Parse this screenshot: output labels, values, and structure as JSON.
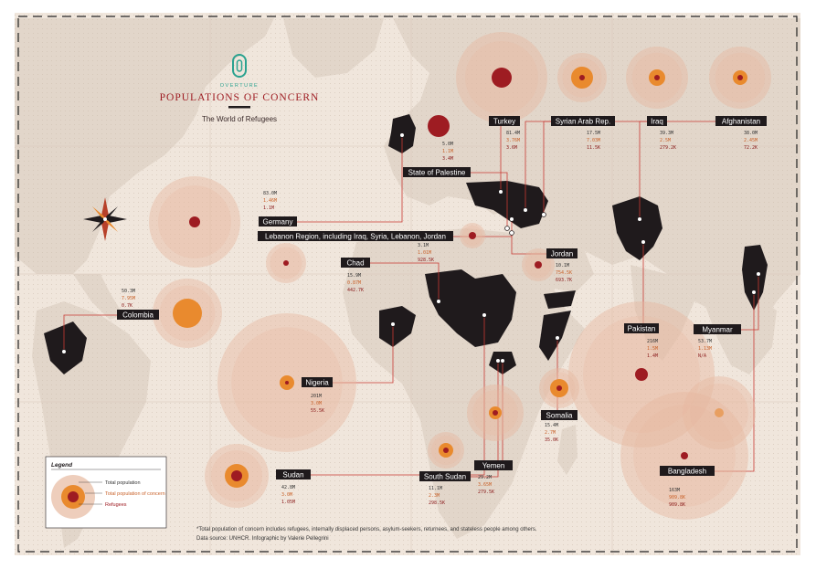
{
  "brand": "OVERTURE",
  "title": "POPULATIONS OF CONCERN",
  "subtitle": "The World of Refugees",
  "footnote_1": "*Total population of concern includes refugees, internally displaced persons, asylum-seekers, returnees, and stateless people among others.",
  "footnote_2": "Data source: UNHCR. Infographic by Valerie Pellegrini",
  "legend": {
    "title": "Legend",
    "items": [
      "Total population",
      "Total population of concern",
      "Refugees"
    ]
  },
  "colors": {
    "ocean": "#f0e6dc",
    "land": "#e2d6ca",
    "country_dark": "#1f1a1c",
    "outer_ring": "#e7b9a0",
    "concern": "#e98a2e",
    "refugees": "#9e1c22",
    "line": "#c73a33"
  },
  "countries": [
    {
      "name": "Turkey",
      "n1": "81.4M",
      "n2": "3.76M",
      "n3": "3.6M"
    },
    {
      "name": "Syrian Arab Rep.",
      "n1": "17.5M",
      "n2": "7.03M",
      "n3": "11.5K"
    },
    {
      "name": "Iraq",
      "n1": "39.3M",
      "n2": "2.5M",
      "n3": "279.2K"
    },
    {
      "name": "Afghanistan",
      "n1": "38.0M",
      "n2": "2.45M",
      "n3": "72.2K"
    },
    {
      "name": "State of Palestine",
      "n1": "5.0M",
      "n2": "1.1M",
      "n3": "3.4M"
    },
    {
      "name": "Germany",
      "n1": "83.0M",
      "n2": "1.46M",
      "n3": "1.1M"
    },
    {
      "name": "Lebanon Region, including Iraq, Syria, Lebanon, Jordan",
      "n1": "3.1M",
      "n2": "1.01M",
      "n3": "928.5K"
    },
    {
      "name": "Jordan",
      "n1": "10.1M",
      "n2": "754.5K",
      "n3": "693.7K"
    },
    {
      "name": "Chad",
      "n1": "15.9M",
      "n2": "0.87M",
      "n3": "442.7K"
    },
    {
      "name": "Colombia",
      "n1": "50.3M",
      "n2": "7.95M",
      "n3": "0.7K"
    },
    {
      "name": "Nigeria",
      "n1": "201M",
      "n2": "3.0M",
      "n3": "55.5K"
    },
    {
      "name": "Pakistan",
      "n1": "216M",
      "n2": "1.5M",
      "n3": "1.4M"
    },
    {
      "name": "Myanmar",
      "n1": "53.7M",
      "n2": "1.13M",
      "n3": "N/A"
    },
    {
      "name": "Somalia",
      "n1": "15.4M",
      "n2": "2.7M",
      "n3": "35.0K"
    },
    {
      "name": "Yemen",
      "n1": "29.2M",
      "n2": "3.65M",
      "n3": "279.5K"
    },
    {
      "name": "South Sudan",
      "n1": "11.1M",
      "n2": "2.3M",
      "n3": "298.5K"
    },
    {
      "name": "Sudan",
      "n1": "42.8M",
      "n2": "3.0M",
      "n3": "1.05M"
    },
    {
      "name": "Bangladesh",
      "n1": "163M",
      "n2": "909.8K",
      "n3": "909.8K"
    }
  ]
}
